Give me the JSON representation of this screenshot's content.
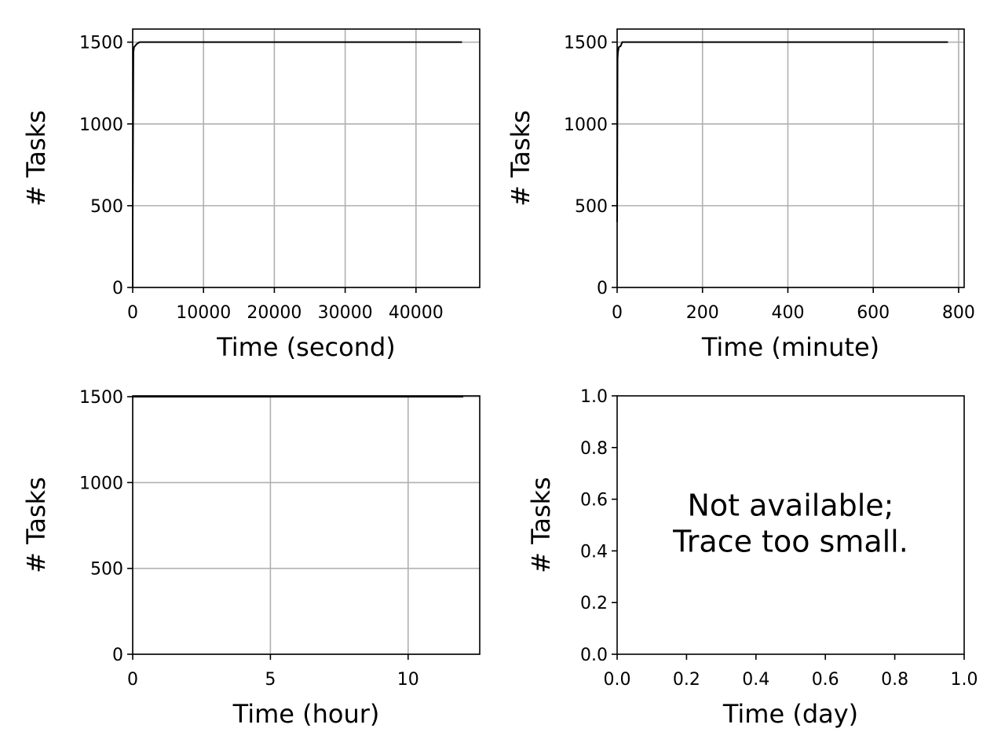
{
  "chart_data": [
    {
      "type": "line",
      "xlabel": "Time (second)",
      "ylabel": "# Tasks",
      "xlim": [
        0,
        49000
      ],
      "ylim": [
        0,
        1580
      ],
      "xticks": [
        0,
        10000,
        20000,
        30000,
        40000
      ],
      "xtick_labels": [
        "0",
        "10000",
        "20000",
        "30000",
        "40000"
      ],
      "yticks": [
        0,
        500,
        1000,
        1500
      ],
      "ytick_labels": [
        "0",
        "500",
        "1000",
        "1500"
      ],
      "grid": true,
      "series": [
        {
          "x": [
            0,
            0,
            100,
            200,
            400,
            600,
            1000,
            46500
          ],
          "y": [
            0,
            400,
            1440,
            1470,
            1480,
            1490,
            1500,
            1500
          ]
        }
      ]
    },
    {
      "type": "line",
      "xlabel": "Time (minute)",
      "ylabel": "# Tasks",
      "xlim": [
        0,
        813
      ],
      "ylim": [
        0,
        1580
      ],
      "xticks": [
        0,
        200,
        400,
        600,
        800
      ],
      "xtick_labels": [
        "0",
        "200",
        "400",
        "600",
        "800"
      ],
      "yticks": [
        0,
        500,
        1000,
        1500
      ],
      "ytick_labels": [
        "0",
        "500",
        "1000",
        "1500"
      ],
      "grid": true,
      "series": [
        {
          "x": [
            0,
            1,
            2,
            4,
            8,
            12,
            775
          ],
          "y": [
            400,
            1400,
            1440,
            1470,
            1475,
            1500,
            1500
          ]
        }
      ]
    },
    {
      "type": "line",
      "xlabel": "Time (hour)",
      "ylabel": "# Tasks",
      "xlim": [
        0,
        12.6
      ],
      "ylim": [
        0,
        1505
      ],
      "xticks": [
        0,
        5,
        10
      ],
      "xtick_labels": [
        "0",
        "5",
        "10"
      ],
      "yticks": [
        0,
        500,
        1000,
        1500
      ],
      "ytick_labels": [
        "0",
        "500",
        "1000",
        "1500"
      ],
      "grid": true,
      "series": [
        {
          "x": [
            0,
            12
          ],
          "y": [
            1500,
            1500
          ]
        }
      ]
    },
    {
      "type": "line",
      "xlabel": "Time (day)",
      "ylabel": "# Tasks",
      "xlim": [
        0,
        1
      ],
      "ylim": [
        0,
        1
      ],
      "xticks": [
        0,
        0.2,
        0.4,
        0.6,
        0.8,
        1.0
      ],
      "xtick_labels": [
        "0.0",
        "0.2",
        "0.4",
        "0.6",
        "0.8",
        "1.0"
      ],
      "yticks": [
        0,
        0.2,
        0.4,
        0.6,
        0.8,
        1.0
      ],
      "ytick_labels": [
        "0.0",
        "0.2",
        "0.4",
        "0.6",
        "0.8",
        "1.0"
      ],
      "grid": false,
      "annotation": [
        "Not available;",
        "Trace too small."
      ],
      "series": []
    }
  ]
}
